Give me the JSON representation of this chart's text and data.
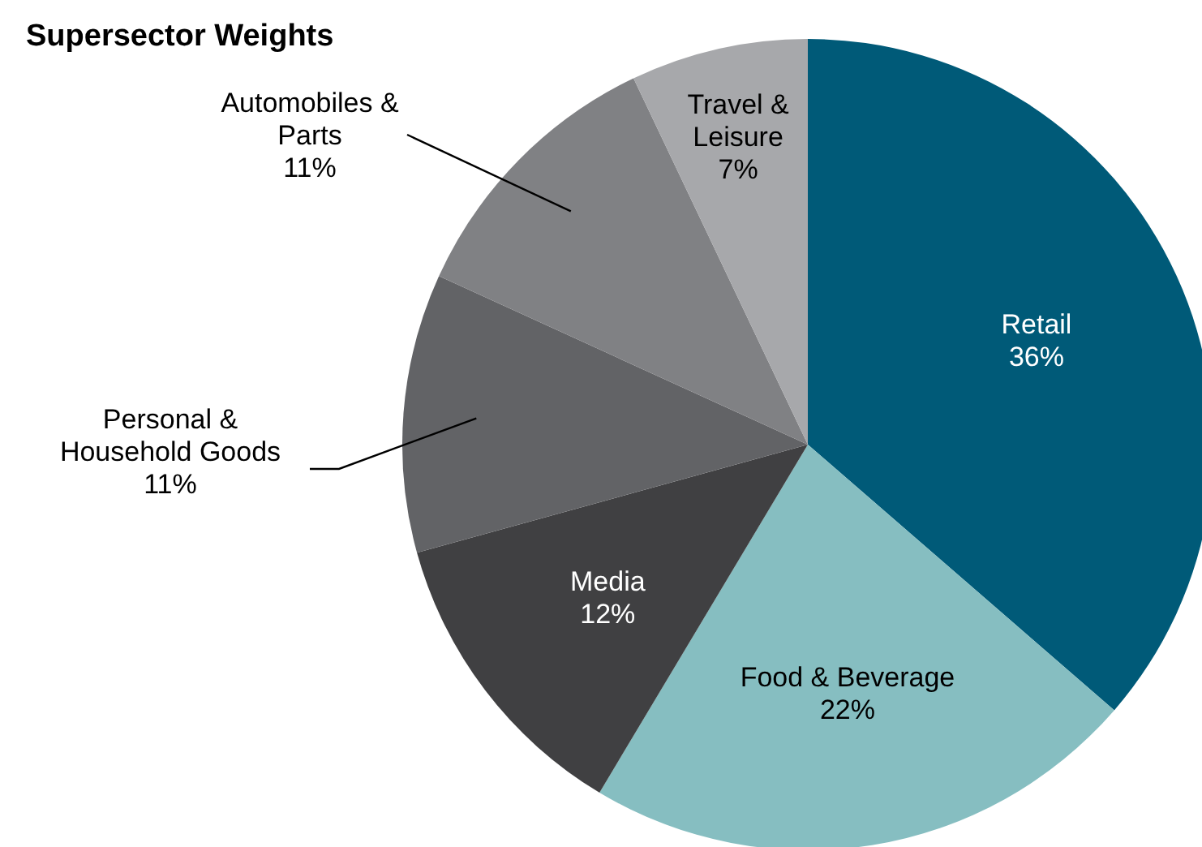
{
  "chart_data": {
    "type": "pie",
    "title": "Supersector Weights",
    "categories": [
      "Retail",
      "Food & Beverage",
      "Media",
      "Personal & Household Goods",
      "Automobiles & Parts",
      "Travel & Leisure"
    ],
    "values": [
      36,
      22,
      12,
      11,
      11,
      7
    ],
    "colors": [
      "#005a78",
      "#86bec1",
      "#404042",
      "#626366",
      "#808184",
      "#a7a8ab"
    ],
    "value_labels": [
      "36%",
      "22%",
      "12%",
      "11%",
      "11%",
      "7%"
    ]
  }
}
